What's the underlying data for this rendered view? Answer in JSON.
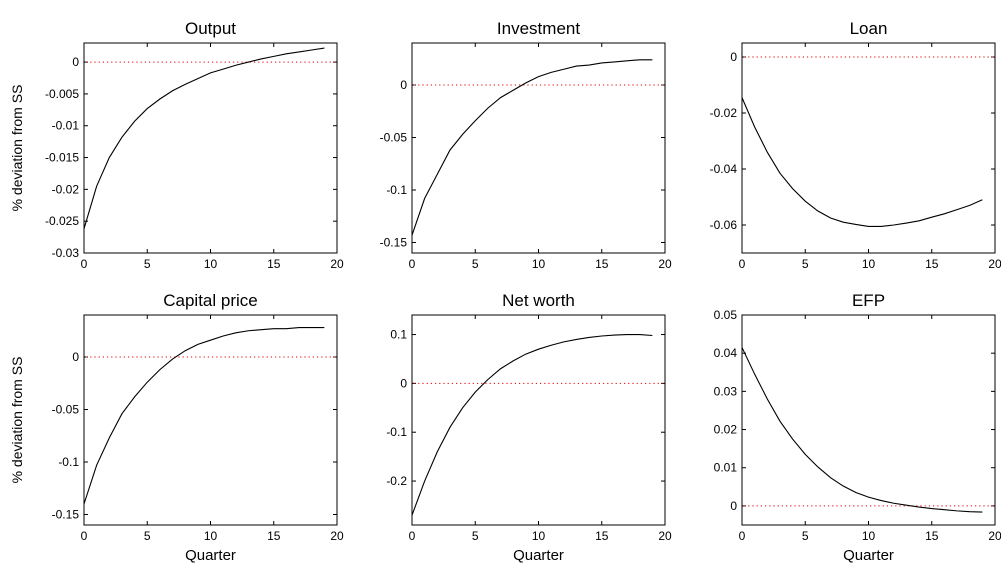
{
  "chart_data": [
    {
      "type": "line",
      "title": "Output",
      "xlabel": "",
      "ylabel": "% deviation from SS",
      "xlim": [
        0,
        20
      ],
      "ylim": [
        -0.03,
        0.003
      ],
      "xticks": [
        0,
        5,
        10,
        15,
        20
      ],
      "yticks": [
        -0.03,
        -0.025,
        -0.02,
        -0.015,
        -0.01,
        -0.005,
        0
      ],
      "xtick_labels": [
        "0",
        "5",
        "10",
        "15",
        "20"
      ],
      "ytick_labels": [
        "-0.03",
        "-0.025",
        "-0.02",
        "-0.015",
        "-0.01",
        "-0.005",
        "0"
      ],
      "grid": false,
      "reference_line": 0,
      "series": [
        {
          "x": [
            0,
            1,
            2,
            3,
            4,
            5,
            6,
            7,
            8,
            9,
            10,
            11,
            12,
            13,
            14,
            15,
            16,
            17,
            18,
            19
          ],
          "y": [
            -0.0262,
            -0.0195,
            -0.015,
            -0.0118,
            -0.0093,
            -0.0073,
            -0.0058,
            -0.0045,
            -0.0035,
            -0.0026,
            -0.0017,
            -0.0011,
            -0.0005,
            0.0,
            0.0005,
            0.0009,
            0.0013,
            0.0016,
            0.0019,
            0.0022
          ]
        }
      ]
    },
    {
      "type": "line",
      "title": "Investment",
      "xlabel": "",
      "ylabel": "",
      "xlim": [
        0,
        20
      ],
      "ylim": [
        -0.16,
        0.04
      ],
      "xticks": [
        0,
        5,
        10,
        15,
        20
      ],
      "yticks": [
        -0.15,
        -0.1,
        -0.05,
        0
      ],
      "xtick_labels": [
        "0",
        "5",
        "10",
        "15",
        "20"
      ],
      "ytick_labels": [
        "-0.15",
        "-0.1",
        "-0.05",
        "0"
      ],
      "grid": false,
      "reference_line": 0,
      "series": [
        {
          "x": [
            0,
            1,
            2,
            3,
            4,
            5,
            6,
            7,
            8,
            9,
            10,
            11,
            12,
            13,
            14,
            15,
            16,
            17,
            18,
            19
          ],
          "y": [
            -0.143,
            -0.108,
            -0.085,
            -0.062,
            -0.047,
            -0.034,
            -0.022,
            -0.012,
            -0.005,
            0.002,
            0.008,
            0.012,
            0.015,
            0.018,
            0.019,
            0.021,
            0.022,
            0.023,
            0.024,
            0.024
          ]
        }
      ]
    },
    {
      "type": "line",
      "title": "Loan",
      "xlabel": "",
      "ylabel": "",
      "xlim": [
        0,
        20
      ],
      "ylim": [
        -0.07,
        0.005
      ],
      "xticks": [
        0,
        5,
        10,
        15,
        20
      ],
      "yticks": [
        -0.06,
        -0.04,
        -0.02,
        0
      ],
      "xtick_labels": [
        "0",
        "5",
        "10",
        "15",
        "20"
      ],
      "ytick_labels": [
        "-0.06",
        "-0.04",
        "-0.02",
        "0"
      ],
      "grid": false,
      "reference_line": 0,
      "series": [
        {
          "x": [
            0,
            1,
            2,
            3,
            4,
            5,
            6,
            7,
            8,
            9,
            10,
            11,
            12,
            13,
            14,
            15,
            16,
            17,
            18,
            19
          ],
          "y": [
            -0.0145,
            -0.025,
            -0.034,
            -0.0415,
            -0.047,
            -0.0515,
            -0.055,
            -0.0575,
            -0.059,
            -0.0598,
            -0.0605,
            -0.0605,
            -0.06,
            -0.0593,
            -0.0585,
            -0.0572,
            -0.056,
            -0.0545,
            -0.053,
            -0.051
          ]
        }
      ]
    },
    {
      "type": "line",
      "title": "Capital price",
      "xlabel": "Quarter",
      "ylabel": "% deviation from SS",
      "xlim": [
        0,
        20
      ],
      "ylim": [
        -0.16,
        0.04
      ],
      "xticks": [
        0,
        5,
        10,
        15,
        20
      ],
      "yticks": [
        -0.15,
        -0.1,
        -0.05,
        0
      ],
      "xtick_labels": [
        "0",
        "5",
        "10",
        "15",
        "20"
      ],
      "ytick_labels": [
        "-0.15",
        "-0.1",
        "-0.05",
        "0"
      ],
      "grid": false,
      "reference_line": 0,
      "series": [
        {
          "x": [
            0,
            1,
            2,
            3,
            4,
            5,
            6,
            7,
            8,
            9,
            10,
            11,
            12,
            13,
            14,
            15,
            16,
            17,
            18,
            19
          ],
          "y": [
            -0.14,
            -0.103,
            -0.077,
            -0.054,
            -0.038,
            -0.024,
            -0.012,
            -0.002,
            0.006,
            0.012,
            0.016,
            0.02,
            0.023,
            0.025,
            0.026,
            0.027,
            0.027,
            0.028,
            0.028,
            0.028
          ]
        }
      ]
    },
    {
      "type": "line",
      "title": "Net worth",
      "xlabel": "Quarter",
      "ylabel": "",
      "xlim": [
        0,
        20
      ],
      "ylim": [
        -0.29,
        0.14
      ],
      "xticks": [
        0,
        5,
        10,
        15,
        20
      ],
      "yticks": [
        -0.2,
        -0.1,
        0,
        0.1
      ],
      "xtick_labels": [
        "0",
        "5",
        "10",
        "15",
        "20"
      ],
      "ytick_labels": [
        "-0.2",
        "-0.1",
        "0",
        "0.1"
      ],
      "grid": false,
      "reference_line": 0,
      "series": [
        {
          "x": [
            0,
            1,
            2,
            3,
            4,
            5,
            6,
            7,
            8,
            9,
            10,
            11,
            12,
            13,
            14,
            15,
            16,
            17,
            18,
            19
          ],
          "y": [
            -0.27,
            -0.2,
            -0.14,
            -0.09,
            -0.05,
            -0.018,
            0.008,
            0.03,
            0.046,
            0.06,
            0.07,
            0.078,
            0.085,
            0.09,
            0.094,
            0.097,
            0.099,
            0.1,
            0.1,
            0.098
          ]
        }
      ]
    },
    {
      "type": "line",
      "title": "EFP",
      "xlabel": "Quarter",
      "ylabel": "",
      "xlim": [
        0,
        20
      ],
      "ylim": [
        -0.005,
        0.05
      ],
      "xticks": [
        0,
        5,
        10,
        15,
        20
      ],
      "yticks": [
        0,
        0.01,
        0.02,
        0.03,
        0.04,
        0.05
      ],
      "xtick_labels": [
        "0",
        "5",
        "10",
        "15",
        "20"
      ],
      "ytick_labels": [
        "0",
        "0.01",
        "0.02",
        "0.03",
        "0.04",
        "0.05"
      ],
      "grid": false,
      "reference_line": 0,
      "series": [
        {
          "x": [
            0,
            1,
            2,
            3,
            4,
            5,
            6,
            7,
            8,
            9,
            10,
            11,
            12,
            13,
            14,
            15,
            16,
            17,
            18,
            19
          ],
          "y": [
            0.0415,
            0.0345,
            0.028,
            0.0222,
            0.0175,
            0.0135,
            0.0102,
            0.0074,
            0.0052,
            0.0035,
            0.0023,
            0.0014,
            0.0007,
            0.0002,
            -0.0003,
            -0.0007,
            -0.001,
            -0.0013,
            -0.0015,
            -0.0016
          ]
        }
      ]
    }
  ]
}
